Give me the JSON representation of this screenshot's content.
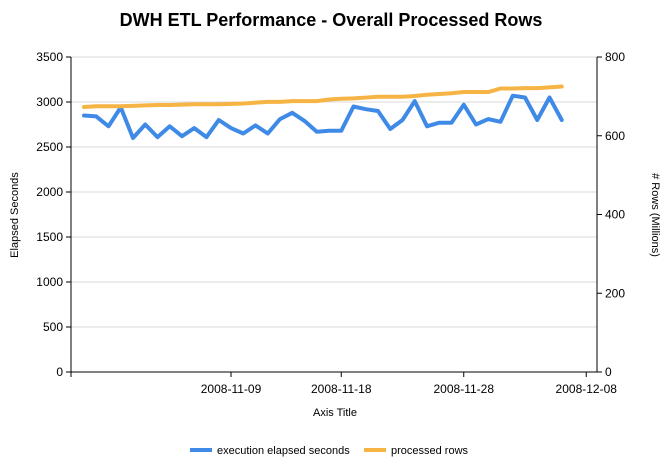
{
  "chart_data": {
    "type": "line",
    "title": "DWH ETL Performance - Overall Processed Rows",
    "xlabel": "Axis Title",
    "ylabel": "Elapsed Seconds",
    "y2label": "# Rows (Millions)",
    "x_tick_labels": [
      "2008-11-09",
      "2008-11-18",
      "2008-11-28",
      "2008-12-08"
    ],
    "x_tick_index": [
      12,
      21,
      31,
      41
    ],
    "ylim": [
      0,
      3500
    ],
    "y_ticks": [
      "0",
      "500",
      "1000",
      "1500",
      "2000",
      "2500",
      "3000",
      "3500"
    ],
    "y2lim": [
      0,
      800
    ],
    "y2_ticks": [
      "0",
      "200",
      "400",
      "600",
      "800"
    ],
    "grid": true,
    "legend_position": "bottom",
    "series": [
      {
        "name": "execution elapsed seconds",
        "axis": "left",
        "color": "#3e8ae6",
        "values": [
          2850,
          2840,
          2730,
          2940,
          2600,
          2750,
          2610,
          2730,
          2620,
          2710,
          2610,
          2800,
          2710,
          2650,
          2740,
          2650,
          2810,
          2880,
          2790,
          2670,
          2680,
          2680,
          2950,
          2920,
          2900,
          2700,
          2800,
          3010,
          2730,
          2770,
          2770,
          2970,
          2750,
          2810,
          2780,
          3070,
          3050,
          2800,
          3050,
          2800
        ]
      },
      {
        "name": "processed rows",
        "axis": "right",
        "color": "#f5b443",
        "values": [
          673,
          675,
          675,
          675,
          676,
          677,
          678,
          678,
          679,
          680,
          680,
          680,
          681,
          682,
          684,
          686,
          686,
          688,
          688,
          688,
          692,
          694,
          695,
          697,
          699,
          699,
          699,
          701,
          704,
          706,
          708,
          711,
          711,
          711,
          720,
          720,
          721,
          721,
          723,
          725
        ]
      }
    ]
  }
}
